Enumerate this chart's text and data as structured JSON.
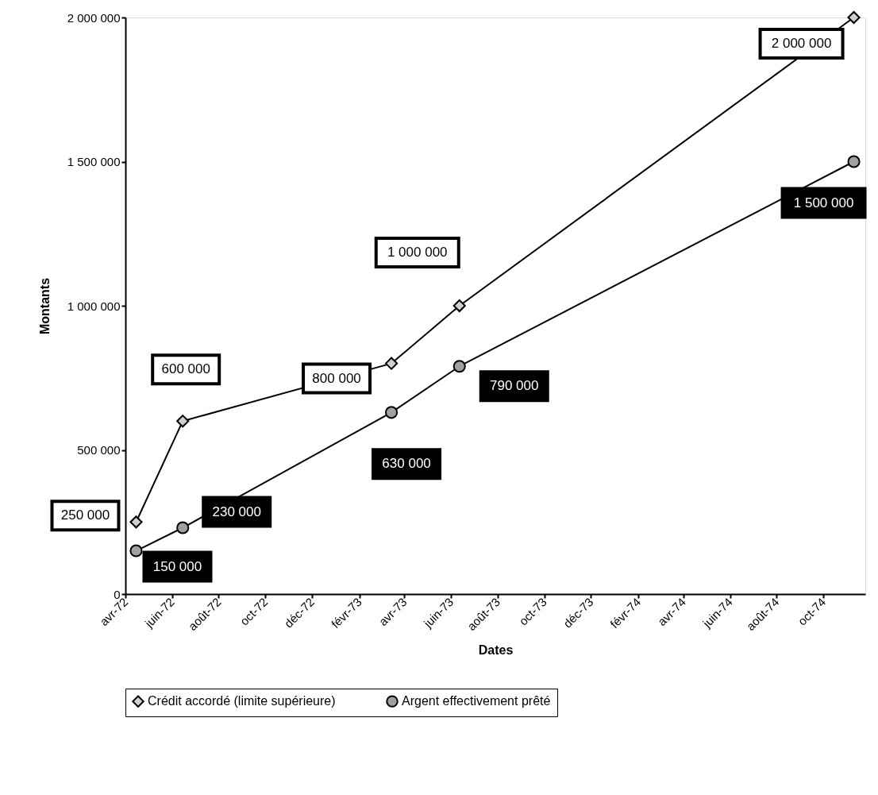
{
  "chart_data": {
    "type": "line",
    "xlabel": "Dates",
    "ylabel": "Montants",
    "xlim": [
      "1972-04-01",
      "1974-11-25"
    ],
    "xticks": [
      {
        "value": "1972-04",
        "label": "avr-72"
      },
      {
        "value": "1972-06",
        "label": "juin-72"
      },
      {
        "value": "1972-08",
        "label": "août-72"
      },
      {
        "value": "1972-10",
        "label": "oct-72"
      },
      {
        "value": "1972-12",
        "label": "déc-72"
      },
      {
        "value": "1973-02",
        "label": "févr-73"
      },
      {
        "value": "1973-04",
        "label": "avr-73"
      },
      {
        "value": "1973-06",
        "label": "juin-73"
      },
      {
        "value": "1973-08",
        "label": "août-73"
      },
      {
        "value": "1973-10",
        "label": "oct-73"
      },
      {
        "value": "1973-12",
        "label": "déc-73"
      },
      {
        "value": "1974-02",
        "label": "févr-74"
      },
      {
        "value": "1974-04",
        "label": "avr-74"
      },
      {
        "value": "1974-06",
        "label": "juin-74"
      },
      {
        "value": "1974-08",
        "label": "août-74"
      },
      {
        "value": "1974-10",
        "label": "oct-74"
      }
    ],
    "ylim": [
      0,
      2000000
    ],
    "yticks": [
      {
        "value": 0,
        "label": "0"
      },
      {
        "value": 500000,
        "label": "500 000"
      },
      {
        "value": 1000000,
        "label": "1 000 000"
      },
      {
        "value": 1500000,
        "label": "1 500 000"
      },
      {
        "value": 2000000,
        "label": "2 000 000"
      }
    ],
    "x": [
      "1972-04-15",
      "1972-06-15",
      "1973-03-15",
      "1973-06-12",
      "1974-11-10"
    ],
    "series": [
      {
        "name": "Crédit accordé (limite supérieure)",
        "color": "#000000",
        "marker": "diamond",
        "values": [
          250000,
          600000,
          800000,
          1000000,
          2000000
        ],
        "value_labels": [
          "250 000",
          "600 000",
          "800 000",
          "1 000 000",
          "2 000 000"
        ]
      },
      {
        "name": "Argent effectivement prêté",
        "color": "#000000",
        "marker": "circle",
        "values": [
          150000,
          230000,
          630000,
          790000,
          1500000
        ],
        "value_labels": [
          "150 000",
          "230 000",
          "630 000",
          "790 000",
          "1 500 000"
        ]
      }
    ],
    "legend": "bottom",
    "grid": false
  }
}
